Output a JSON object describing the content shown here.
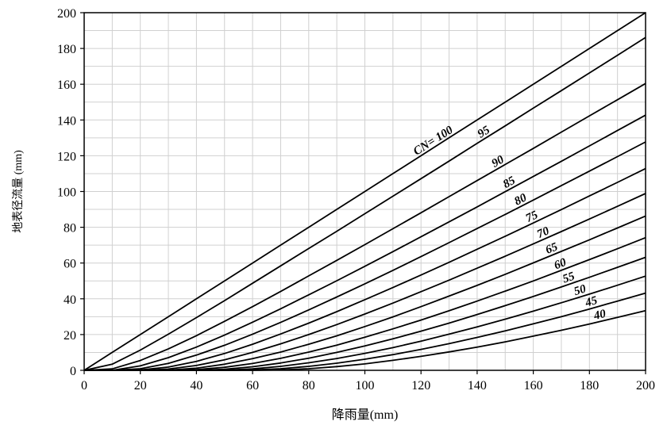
{
  "chart_data": {
    "type": "line",
    "title": "",
    "xlabel": "降雨量(mm)",
    "ylabel": "地表径流量 (mm)",
    "xlim": [
      0,
      200
    ],
    "ylim": [
      0,
      200
    ],
    "xticks": [
      "0",
      "20",
      "40",
      "60",
      "80",
      "100",
      "120",
      "140",
      "160",
      "180",
      "200"
    ],
    "yticks": [
      "0",
      "20",
      "40",
      "60",
      "80",
      "100",
      "120",
      "140",
      "160",
      "180",
      "200"
    ],
    "grid": true,
    "grid_minor_step": 10,
    "line_color": "#000000",
    "grid_color": "#d0d0d0",
    "rainfall_mm": [
      0,
      10,
      20,
      30,
      40,
      50,
      60,
      70,
      80,
      90,
      100,
      110,
      120,
      130,
      140,
      150,
      160,
      170,
      180,
      190,
      200
    ],
    "series": [
      {
        "label": "CN= 100",
        "cn": 100,
        "values": [
          0,
          10,
          20,
          30,
          40,
          50,
          60,
          70,
          80,
          90,
          100,
          110,
          120,
          130,
          140,
          150,
          160,
          170,
          180,
          190,
          200
        ]
      },
      {
        "label": "95",
        "cn": 95,
        "values": [
          0,
          3.4,
          11.3,
          20.2,
          29.5,
          39.0,
          48.7,
          58.4,
          68.1,
          77.8,
          87.6,
          97.4,
          107.2,
          117.0,
          126.9,
          136.7,
          146.6,
          156.4,
          166.3,
          176.2,
          186.1
        ]
      },
      {
        "label": "90",
        "cn": 90,
        "values": [
          0,
          0.8,
          5.5,
          12.0,
          19.4,
          27.4,
          35.6,
          44.1,
          52.8,
          61.5,
          70.3,
          79.2,
          88.1,
          97.1,
          106.1,
          115.1,
          124.1,
          133.2,
          142.3,
          151.3,
          160.4
        ]
      },
      {
        "label": "85",
        "cn": 85,
        "values": [
          0,
          0.0,
          2.5,
          7.1,
          13.0,
          19.7,
          26.9,
          34.4,
          42.2,
          50.1,
          58.2,
          66.4,
          74.7,
          83.0,
          91.4,
          99.9,
          108.4,
          116.9,
          125.5,
          134.1,
          142.7
        ]
      },
      {
        "label": "80",
        "cn": 80,
        "values": [
          0,
          0.0,
          0.9,
          3.9,
          8.5,
          14.0,
          20.2,
          26.8,
          33.8,
          41.0,
          48.4,
          55.9,
          63.6,
          71.4,
          79.3,
          87.2,
          95.2,
          103.3,
          111.4,
          119.5,
          127.7
        ]
      },
      {
        "label": "75",
        "cn": 75,
        "values": [
          0,
          0.0,
          0.2,
          1.8,
          5.0,
          9.4,
          14.6,
          20.3,
          26.4,
          32.8,
          39.5,
          46.3,
          53.3,
          60.4,
          67.7,
          75.0,
          82.4,
          89.9,
          97.5,
          105.1,
          112.8
        ]
      },
      {
        "label": "70",
        "cn": 70,
        "values": [
          0,
          0.0,
          0.0,
          0.7,
          2.7,
          5.9,
          10.0,
          14.8,
          20.0,
          25.6,
          31.5,
          37.6,
          44.0,
          50.4,
          57.1,
          63.8,
          70.7,
          77.6,
          84.6,
          91.7,
          98.9
        ]
      },
      {
        "label": "65",
        "cn": 65,
        "values": [
          0,
          0.0,
          0.0,
          0.1,
          1.2,
          3.4,
          6.5,
          10.2,
          14.6,
          19.3,
          24.5,
          29.9,
          35.6,
          41.5,
          47.5,
          53.7,
          60.1,
          66.5,
          73.0,
          79.6,
          86.3
        ]
      },
      {
        "label": "60",
        "cn": 60,
        "values": [
          0,
          0.0,
          0.0,
          0.0,
          0.4,
          1.7,
          3.8,
          6.7,
          10.2,
          14.1,
          18.5,
          23.2,
          28.1,
          33.3,
          38.7,
          44.3,
          50.0,
          55.9,
          61.9,
          68.0,
          74.2
        ]
      },
      {
        "label": "55",
        "cn": 55,
        "values": [
          0,
          0.0,
          0.0,
          0.0,
          0.0,
          0.6,
          2.0,
          4.1,
          6.8,
          10.0,
          13.6,
          17.6,
          21.9,
          26.4,
          31.2,
          36.2,
          41.3,
          46.6,
          52.0,
          57.6,
          63.2
        ]
      },
      {
        "label": "50",
        "cn": 50,
        "values": [
          0,
          0.0,
          0.0,
          0.0,
          0.0,
          0.1,
          0.8,
          2.2,
          4.2,
          6.6,
          9.5,
          12.7,
          16.3,
          20.2,
          24.3,
          28.6,
          33.1,
          37.8,
          42.6,
          47.6,
          52.7
        ]
      },
      {
        "label": "45",
        "cn": 45,
        "values": [
          0,
          0.0,
          0.0,
          0.0,
          0.0,
          0.0,
          0.2,
          0.9,
          2.2,
          4.0,
          6.2,
          8.8,
          11.7,
          14.9,
          18.4,
          22.1,
          26.0,
          30.0,
          34.3,
          38.7,
          43.2
        ]
      },
      {
        "label": "40",
        "cn": 40,
        "values": [
          0,
          0.0,
          0.0,
          0.0,
          0.0,
          0.0,
          0.0,
          0.2,
          0.9,
          2.1,
          3.6,
          5.6,
          7.8,
          10.3,
          13.0,
          15.9,
          19.1,
          22.4,
          25.9,
          29.6,
          33.4
        ]
      }
    ]
  }
}
